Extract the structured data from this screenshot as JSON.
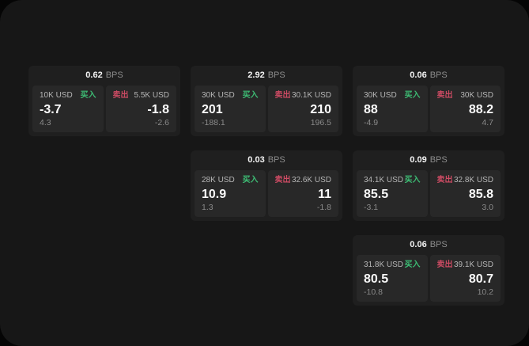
{
  "labels": {
    "bps_unit": "BPS",
    "buy": "买入",
    "sell": "卖出"
  },
  "colors": {
    "outer_background": "#050505",
    "screen_background": "#171717",
    "card_background": "#1f1f1f",
    "panel_background": "#282828",
    "buy_green": "#3dbc74",
    "sell_red": "#cc4b63",
    "value_text": "#fafafa",
    "muted_text": "#8a8a8a"
  },
  "cards": [
    {
      "bps": "0.62",
      "buy": {
        "notional": "10K USD",
        "value": "-3.7",
        "sub": "4.3"
      },
      "sell": {
        "notional": "5.5K USD",
        "value": "-1.8",
        "sub": "-2.6"
      }
    },
    {
      "bps": "2.92",
      "buy": {
        "notional": "30K USD",
        "value": "201",
        "sub": "-188.1"
      },
      "sell": {
        "notional": "30.1K USD",
        "value": "210",
        "sub": "196.5"
      }
    },
    {
      "bps": "0.06",
      "buy": {
        "notional": "30K USD",
        "value": "88",
        "sub": "-4.9"
      },
      "sell": {
        "notional": "30K USD",
        "value": "88.2",
        "sub": "4.7"
      }
    },
    {
      "bps": "0.03",
      "buy": {
        "notional": "28K USD",
        "value": "10.9",
        "sub": "1.3"
      },
      "sell": {
        "notional": "32.6K USD",
        "value": "11",
        "sub": "-1.8"
      }
    },
    {
      "bps": "0.09",
      "buy": {
        "notional": "34.1K USD",
        "value": "85.5",
        "sub": "-3.1"
      },
      "sell": {
        "notional": "32.8K USD",
        "value": "85.8",
        "sub": "3.0"
      }
    },
    {
      "bps": "0.06",
      "buy": {
        "notional": "31.8K USD",
        "value": "80.5",
        "sub": "-10.8"
      },
      "sell": {
        "notional": "39.1K USD",
        "value": "80.7",
        "sub": "10.2"
      }
    }
  ]
}
